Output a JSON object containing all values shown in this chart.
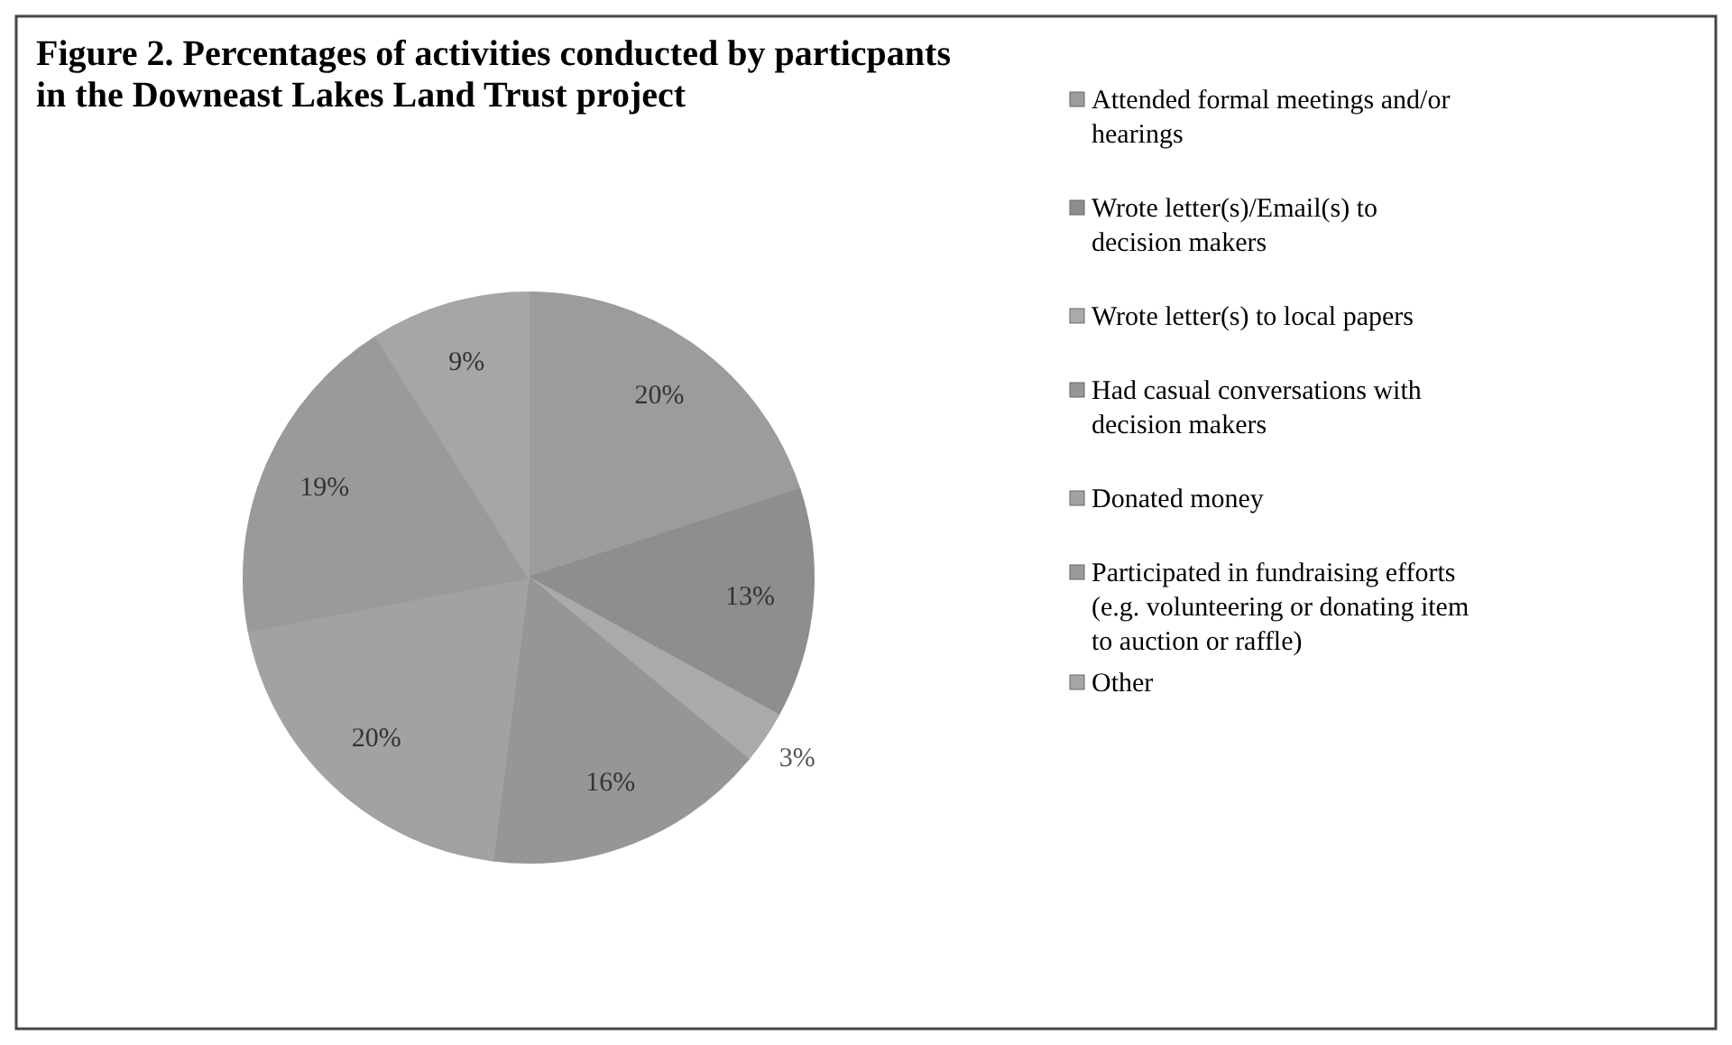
{
  "chart_data": {
    "type": "pie",
    "title": "Figure 2. Percentages of activities conducted by particpants in the Downeast Lakes Land Trust project",
    "categories": [
      "Attended formal meetings and/or hearings",
      "Wrote letter(s)/Email(s) to decision makers",
      "Wrote letter(s) to local papers",
      "Had casual conversations with decision makers",
      "Donated money",
      "Participated in fundraising efforts (e.g. volunteering or donating item to auction or raffle)",
      "Other"
    ],
    "values": [
      20,
      13,
      3,
      16,
      20,
      19,
      9
    ],
    "colors": [
      "#9c9c9c",
      "#8e8e8e",
      "#aaaaaa",
      "#969696",
      "#a2a2a2",
      "#9a9a9a",
      "#a6a6a6"
    ],
    "value_labels": [
      "20%",
      "13%",
      "3%",
      "16%",
      "20%",
      "19%",
      "9%"
    ],
    "legend": "right"
  }
}
